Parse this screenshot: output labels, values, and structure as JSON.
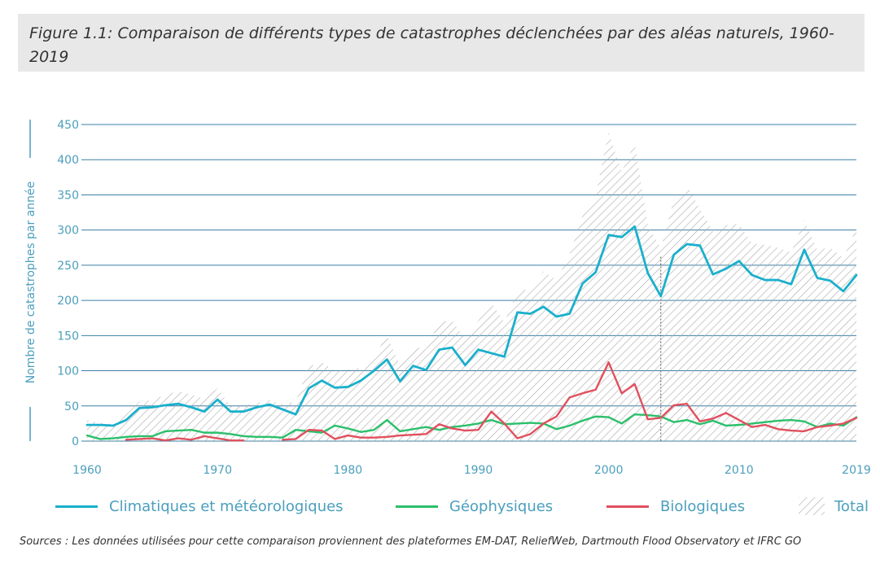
{
  "title": "Figure 1.1: Comparaison de différents types de catastrophes déclenchées par des aléas naturels, 1960-2019",
  "source": "Sources : Les données utilisées pour cette comparaison proviennent des plateformes EM-DAT, ReliefWeb, Dartmouth Flood Observatory et IFRC GO",
  "colors": {
    "climatiques": "#1ab0cc",
    "geophysiques": "#2cbf6b",
    "biologiques": "#e0505e",
    "total_hatch": "#aaaaaa",
    "axis_text": "#4b9fbd",
    "grid": "#3c7fa6"
  },
  "chart_data": {
    "type": "line",
    "title": "",
    "xlabel": "",
    "ylabel": "Nombre de catastrophes par année",
    "xlim": [
      1960,
      2019
    ],
    "ylim": [
      0,
      450
    ],
    "yticks": [
      0,
      50,
      100,
      150,
      200,
      250,
      300,
      350,
      400,
      450
    ],
    "xticks": [
      1960,
      1970,
      1980,
      1990,
      2000,
      2010,
      2019
    ],
    "grid": true,
    "legend_position": "bottom",
    "x": [
      1960,
      1961,
      1962,
      1963,
      1964,
      1965,
      1966,
      1967,
      1968,
      1969,
      1970,
      1971,
      1972,
      1973,
      1974,
      1975,
      1976,
      1977,
      1978,
      1979,
      1980,
      1981,
      1982,
      1983,
      1984,
      1985,
      1986,
      1987,
      1988,
      1989,
      1990,
      1991,
      1992,
      1993,
      1994,
      1995,
      1996,
      1997,
      1998,
      1999,
      2000,
      2001,
      2002,
      2003,
      2004,
      2005,
      2006,
      2007,
      2008,
      2009,
      2010,
      2011,
      2012,
      2013,
      2014,
      2015,
      2016,
      2017,
      2018,
      2019
    ],
    "series": [
      {
        "name": "Climatiques et météorologiques",
        "type": "line",
        "values": [
          23,
          23,
          22,
          30,
          47,
          48,
          51,
          53,
          48,
          42,
          59,
          42,
          42,
          48,
          52,
          45,
          38,
          75,
          86,
          76,
          77,
          86,
          100,
          116,
          85,
          107,
          101,
          130,
          133,
          108,
          130,
          125,
          120,
          183,
          181,
          191,
          177,
          181,
          224,
          240,
          293,
          290,
          305,
          239,
          206,
          265,
          280,
          278,
          237,
          245,
          256,
          236,
          229,
          229,
          223,
          272,
          232,
          228,
          213,
          236
        ]
      },
      {
        "name": "Géophysiques",
        "type": "line",
        "values": [
          8,
          3,
          4,
          6,
          7,
          7,
          14,
          15,
          16,
          12,
          12,
          10,
          7,
          6,
          6,
          5,
          16,
          14,
          12,
          22,
          18,
          13,
          16,
          30,
          14,
          17,
          20,
          16,
          20,
          22,
          25,
          30,
          24,
          25,
          26,
          25,
          17,
          22,
          29,
          35,
          34,
          25,
          38,
          37,
          35,
          27,
          30,
          24,
          29,
          22,
          23,
          25,
          27,
          29,
          30,
          28,
          20,
          25,
          22,
          34
        ]
      },
      {
        "name": "Biologiques",
        "type": "line",
        "values": [
          null,
          null,
          null,
          2,
          3,
          4,
          1,
          4,
          2,
          7,
          4,
          1,
          1,
          null,
          null,
          2,
          3,
          16,
          15,
          3,
          8,
          5,
          5,
          6,
          8,
          9,
          10,
          24,
          18,
          15,
          16,
          42,
          25,
          4,
          10,
          25,
          35,
          62,
          68,
          73,
          112,
          68,
          81,
          31,
          33,
          51,
          53,
          28,
          32,
          40,
          30,
          20,
          23,
          17,
          15,
          14,
          20,
          22,
          25,
          33
        ]
      },
      {
        "name": "Total",
        "type": "area",
        "values": [
          30,
          26,
          24,
          38,
          56,
          58,
          66,
          71,
          66,
          60,
          75,
          50,
          50,
          54,
          58,
          52,
          56,
          106,
          112,
          100,
          102,
          104,
          120,
          150,
          108,
          134,
          131,
          170,
          171,
          145,
          171,
          197,
          169,
          212,
          217,
          241,
          229,
          265,
          321,
          349,
          439,
          383,
          424,
          307,
          274,
          343,
          363,
          330,
          298,
          307,
          309,
          281,
          279,
          275,
          268,
          314,
          272,
          275,
          260,
          303
        ]
      }
    ]
  }
}
